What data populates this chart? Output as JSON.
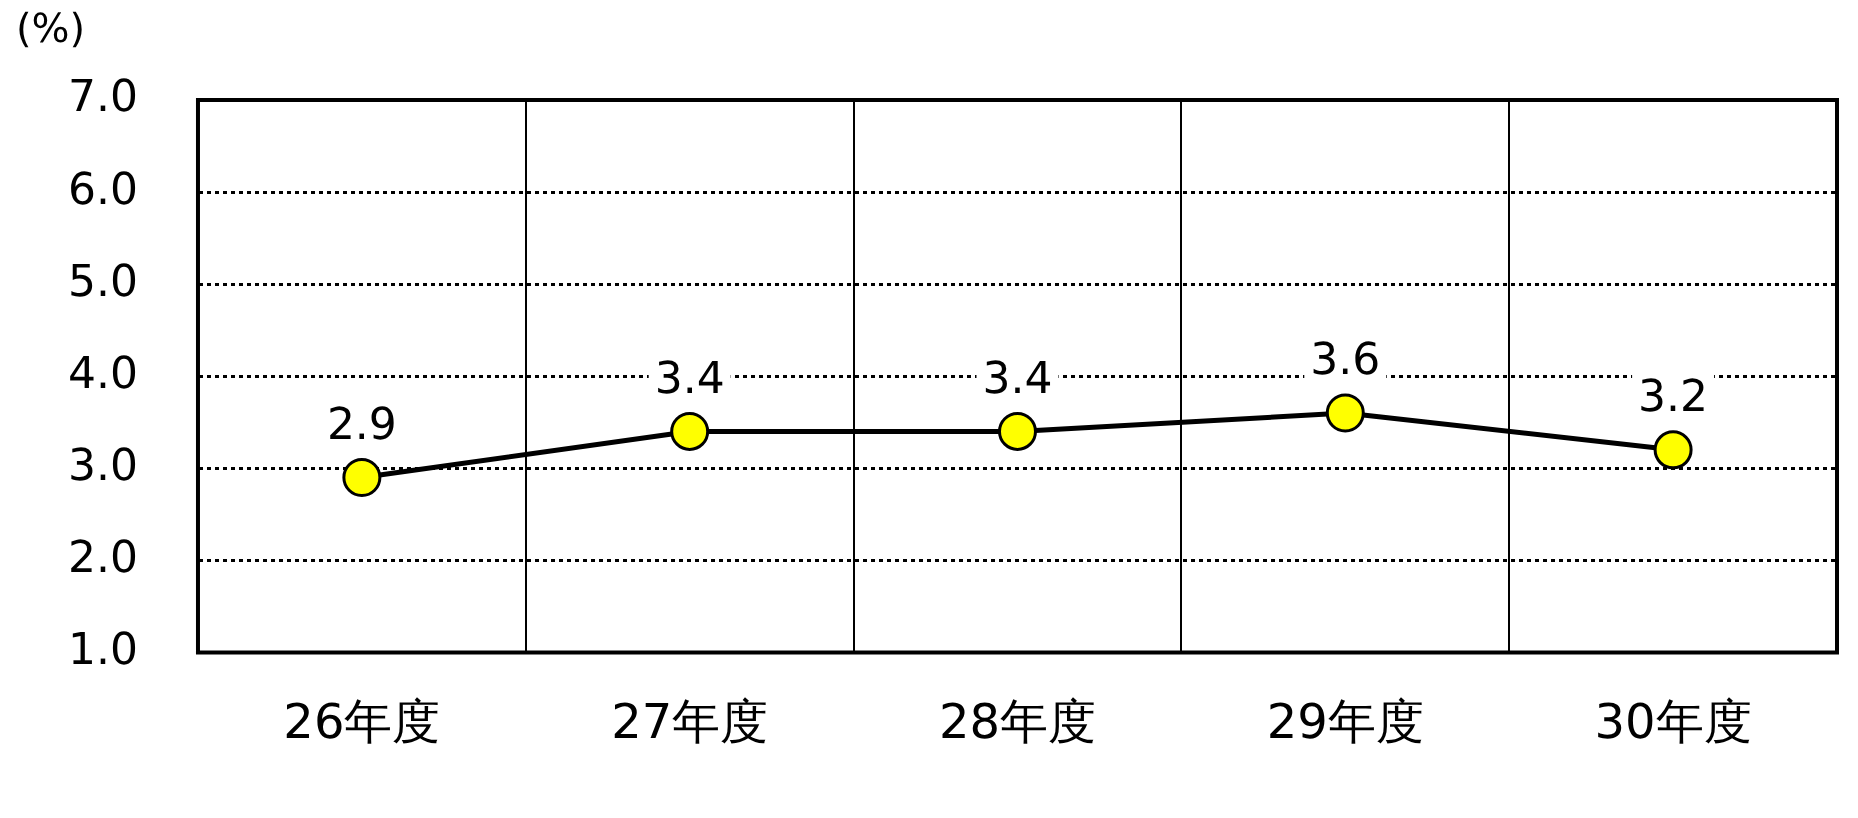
{
  "chart_data": {
    "type": "line",
    "ylabel": "(%)",
    "categories": [
      "26年度",
      "27年度",
      "28年度",
      "29年度",
      "30年度"
    ],
    "values": [
      2.9,
      3.4,
      3.4,
      3.6,
      3.2
    ],
    "value_labels": [
      "2.9",
      "3.4",
      "3.4",
      "3.6",
      "3.2"
    ],
    "color": "#000000",
    "colors": [
      "#ffff00",
      "#ffff00",
      "#ffff00",
      "#ffff00",
      "#ffff00"
    ],
    "ylim": [
      1,
      7
    ],
    "yticks": [
      {
        "value": 1,
        "label": "1.0"
      },
      {
        "value": 2,
        "label": "2.0"
      },
      {
        "value": 3,
        "label": "3.0"
      },
      {
        "value": 4,
        "label": "4.0"
      },
      {
        "value": 5,
        "label": "5.0"
      },
      {
        "value": 6,
        "label": "6.0"
      },
      {
        "value": 7,
        "label": "7.0"
      }
    ],
    "grid": true,
    "legend": false,
    "marker": "circle",
    "line_style": "solid"
  }
}
